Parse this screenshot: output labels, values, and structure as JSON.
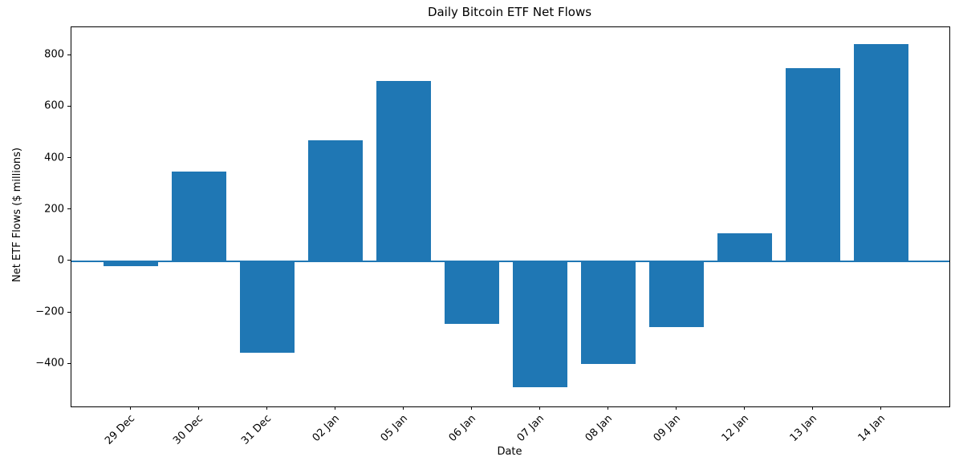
{
  "chart_data": {
    "type": "bar",
    "title": "Daily Bitcoin ETF Net Flows",
    "xlabel": "Date",
    "ylabel": "Net ETF Flows ($ millions)",
    "categories": [
      "29 Dec",
      "30 Dec",
      "31 Dec",
      "02 Jan",
      "05 Jan",
      "06 Jan",
      "07 Jan",
      "08 Jan",
      "09 Jan",
      "12 Jan",
      "13 Jan",
      "14 Jan"
    ],
    "values": [
      -20,
      350,
      -355,
      470,
      700,
      -245,
      -490,
      -400,
      -255,
      110,
      750,
      845
    ],
    "ylim": [
      -565,
      910
    ],
    "yticks": [
      800,
      600,
      400,
      200,
      0,
      -200,
      -400
    ],
    "ytick_labels": [
      "800",
      "600",
      "400",
      "200",
      "0",
      "−200",
      "−400"
    ],
    "xtick_rotation_deg": 45,
    "grid": false,
    "legend": "none",
    "bar_color": "#1f77b4",
    "zero_line_color": "#1f77b4",
    "axis_color": "#000000",
    "background_color": "#ffffff"
  }
}
